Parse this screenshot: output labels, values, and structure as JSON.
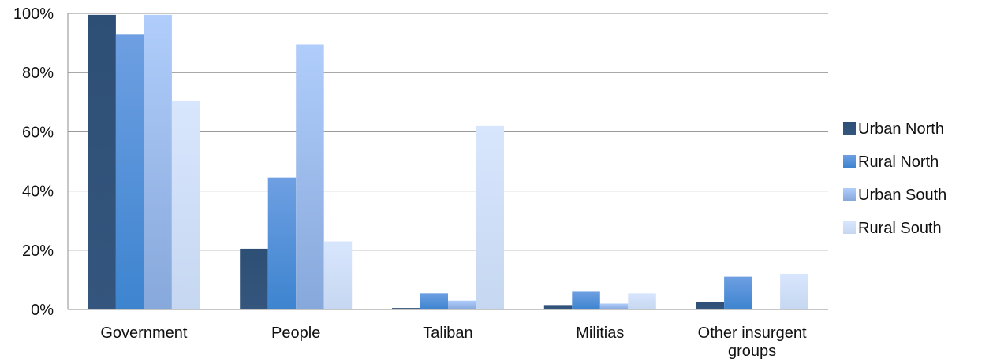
{
  "chart_data": {
    "type": "bar",
    "title": "",
    "xlabel": "",
    "ylabel": "",
    "categories": [
      "Government",
      "People",
      "Taliban",
      "Militias",
      "Other insurgent groups"
    ],
    "series": [
      {
        "name": "Urban North",
        "values": [
          99.5,
          20.5,
          0.5,
          1.5,
          2.5
        ],
        "color_top": "#2e4f75",
        "color_bottom": "#34557d"
      },
      {
        "name": "Rural North",
        "values": [
          93,
          44.5,
          5.5,
          6,
          11
        ],
        "color_top": "#6e9fe2",
        "color_bottom": "#3d84cf"
      },
      {
        "name": "Urban South",
        "values": [
          99.5,
          89.5,
          3,
          2,
          0
        ],
        "color_top": "#b0cdfb",
        "color_bottom": "#87a8db"
      },
      {
        "name": "Rural South",
        "values": [
          70.5,
          23,
          62,
          5.5,
          12
        ],
        "color_top": "#d8e6fd",
        "color_bottom": "#c6d7f1"
      }
    ],
    "ylim": [
      0,
      100
    ],
    "yticks": [
      0,
      20,
      40,
      60,
      80,
      100
    ],
    "ytick_labels": [
      "0%",
      "20%",
      "40%",
      "60%",
      "80%",
      "100%"
    ],
    "grid": true,
    "legend_position": "right"
  }
}
